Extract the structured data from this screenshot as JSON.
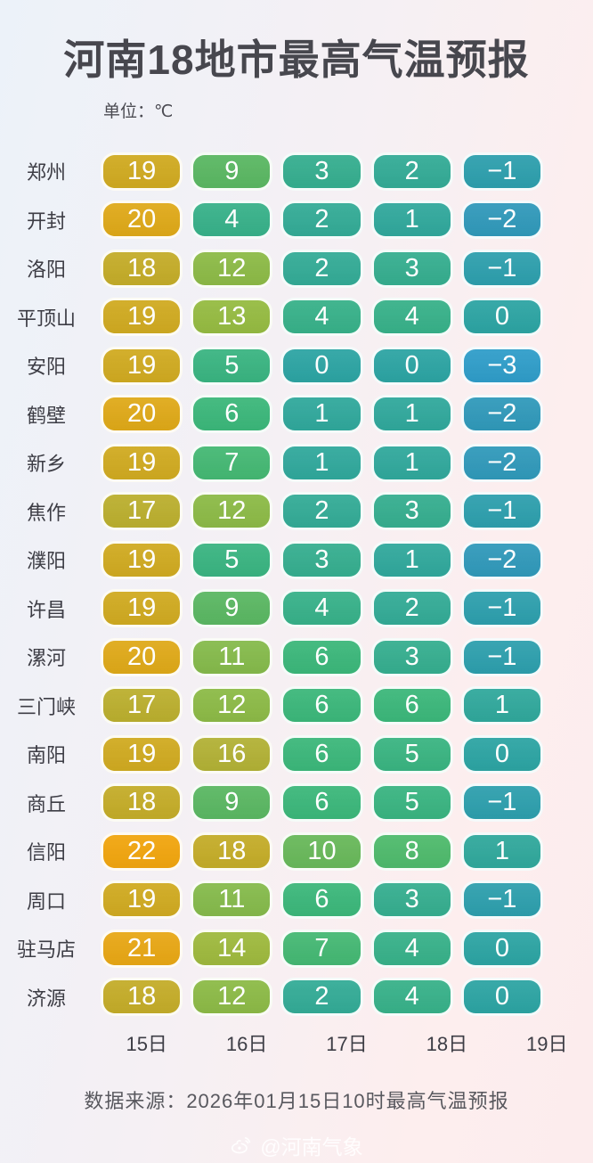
{
  "header": {
    "title": "河南18地市最高气温预报",
    "unit_label": "单位：℃"
  },
  "chart_data": {
    "type": "heatmap",
    "title": "河南18地市最高气温预报",
    "unit": "℃",
    "columns": [
      "15日",
      "16日",
      "17日",
      "18日",
      "19日"
    ],
    "rows": [
      {
        "city": "郑州",
        "values": [
          19,
          9,
          3,
          2,
          -1
        ]
      },
      {
        "city": "开封",
        "values": [
          20,
          4,
          2,
          1,
          -2
        ]
      },
      {
        "city": "洛阳",
        "values": [
          18,
          12,
          2,
          3,
          -1
        ]
      },
      {
        "city": "平顶山",
        "values": [
          19,
          13,
          4,
          4,
          0
        ]
      },
      {
        "city": "安阳",
        "values": [
          19,
          5,
          0,
          0,
          -3
        ]
      },
      {
        "city": "鹤壁",
        "values": [
          20,
          6,
          1,
          1,
          -2
        ]
      },
      {
        "city": "新乡",
        "values": [
          19,
          7,
          1,
          1,
          -2
        ]
      },
      {
        "city": "焦作",
        "values": [
          17,
          12,
          2,
          3,
          -1
        ]
      },
      {
        "city": "濮阳",
        "values": [
          19,
          5,
          3,
          1,
          -2
        ]
      },
      {
        "city": "许昌",
        "values": [
          19,
          9,
          4,
          2,
          -1
        ]
      },
      {
        "city": "漯河",
        "values": [
          20,
          11,
          6,
          3,
          -1
        ]
      },
      {
        "city": "三门峡",
        "values": [
          17,
          12,
          6,
          6,
          1
        ]
      },
      {
        "city": "南阳",
        "values": [
          19,
          16,
          6,
          5,
          0
        ]
      },
      {
        "city": "商丘",
        "values": [
          18,
          9,
          6,
          5,
          -1
        ]
      },
      {
        "city": "信阳",
        "values": [
          22,
          18,
          10,
          8,
          1
        ]
      },
      {
        "city": "周口",
        "values": [
          19,
          11,
          6,
          3,
          -1
        ]
      },
      {
        "city": "驻马店",
        "values": [
          21,
          14,
          7,
          4,
          0
        ]
      },
      {
        "city": "济源",
        "values": [
          18,
          12,
          2,
          4,
          0
        ]
      }
    ],
    "color_scale": {
      "-3": "#2f9dc9",
      "-2": "#3099ba",
      "-1": "#2d9fad",
      "0": "#2ca4a3",
      "1": "#30a89c",
      "2": "#33ab96",
      "3": "#35ae8f",
      "4": "#37b189",
      "5": "#39b481",
      "6": "#3bb77a",
      "7": "#44b873",
      "8": "#4eba6c",
      "9": "#5ab762",
      "10": "#68b85a",
      "11": "#85ba4b",
      "12": "#8cba46",
      "13": "#95bb41",
      "14": "#9eb93d",
      "16": "#b2b135",
      "17": "#bbaf2e",
      "18": "#c4ac28",
      "19": "#d0aa20",
      "20": "#dfa918",
      "21": "#e8a714",
      "22": "#f1a50e"
    },
    "legend_position": "none",
    "grid": false
  },
  "footer": {
    "source": "数据来源：2026年01月15日10时最高气温预报",
    "watermark": "@河南气象",
    "watermark_icon": "weibo-icon"
  }
}
